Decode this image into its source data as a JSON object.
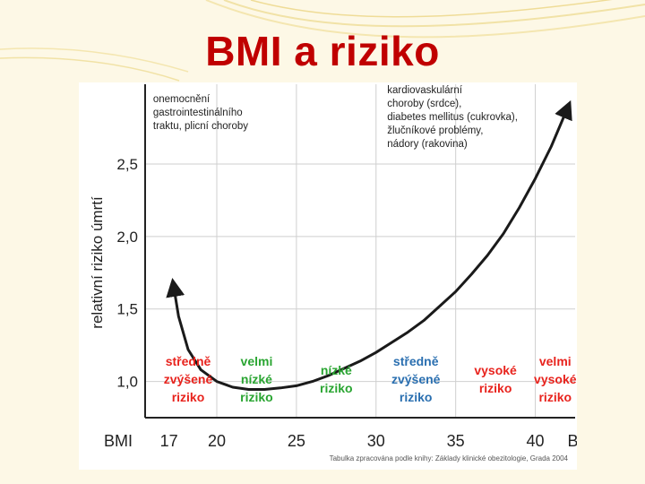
{
  "slide": {
    "title": "BMI a riziko"
  },
  "colors": {
    "title": "#c00000",
    "red_zone": "#e8231d",
    "green_zone": "#2aa532",
    "blue_zone": "#2a6fb0",
    "curve": "#1a1a1a",
    "grid": "#cfcfcf"
  },
  "chart_data": {
    "type": "line",
    "ylabel": "relativní riziko úmrtí",
    "xlabel": "BMI",
    "x_axis_start_label": "BMI",
    "x_axis_end_label": "BMI",
    "ylim": [
      0.75,
      3.05
    ],
    "xlim": [
      15.5,
      42.5
    ],
    "y_ticks": [
      {
        "value": 1.0,
        "label": "1,0"
      },
      {
        "value": 1.5,
        "label": "1,5"
      },
      {
        "value": 2.0,
        "label": "2,0"
      },
      {
        "value": 2.5,
        "label": "2,5"
      }
    ],
    "x_ticks": [
      {
        "value": 17,
        "label": "17"
      },
      {
        "value": 20,
        "label": "20"
      },
      {
        "value": 25,
        "label": "25"
      },
      {
        "value": 30,
        "label": "30"
      },
      {
        "value": 35,
        "label": "35"
      },
      {
        "value": 40,
        "label": "40"
      }
    ],
    "grid": true,
    "series": [
      {
        "x": [
          17.3,
          17.6,
          18.2,
          19.0,
          20.0,
          21.0,
          22.0,
          23.0,
          24.0,
          25.0,
          26.0,
          27.0,
          28.0,
          29.0,
          30.0,
          31.0,
          32.0,
          33.0,
          34.0,
          35.0,
          36.0,
          37.0,
          38.0,
          39.0,
          40.0,
          41.0,
          42.0
        ],
        "y": [
          1.65,
          1.45,
          1.22,
          1.08,
          1.0,
          0.96,
          0.945,
          0.945,
          0.955,
          0.97,
          1.0,
          1.04,
          1.09,
          1.14,
          1.2,
          1.27,
          1.34,
          1.42,
          1.52,
          1.62,
          1.74,
          1.87,
          2.02,
          2.2,
          2.4,
          2.62,
          2.88
        ]
      }
    ],
    "annotations": [
      {
        "id": "low",
        "lines": [
          "onemocnění",
          "gastrointestinálního",
          "traktu, plicní choroby"
        ]
      },
      {
        "id": "high",
        "lines": [
          "kardiovaskulární",
          "choroby (srdce),",
          "diabetes mellitus (cukrovka),",
          "žlučníkové problémy,",
          "nádory (rakovina)"
        ]
      }
    ],
    "zones": [
      {
        "x_from": 15.5,
        "x_to": 20,
        "color": "#e8231d",
        "lines": [
          "středně",
          "zvýšené",
          "riziko"
        ]
      },
      {
        "x_from": 20,
        "x_to": 25,
        "color": "#2aa532",
        "lines": [
          "velmi",
          "nízké",
          "riziko"
        ]
      },
      {
        "x_from": 25,
        "x_to": 30,
        "color": "#2aa532",
        "lines": [
          "nízké",
          "riziko"
        ]
      },
      {
        "x_from": 30,
        "x_to": 35,
        "color": "#2a6fb0",
        "lines": [
          "středně",
          "zvýšené",
          "riziko"
        ]
      },
      {
        "x_from": 35,
        "x_to": 40,
        "color": "#e8231d",
        "lines": [
          "vysoké",
          "riziko"
        ]
      },
      {
        "x_from": 40,
        "x_to": 42.5,
        "color": "#e8231d",
        "lines": [
          "velmi",
          "vysoké",
          "riziko"
        ]
      }
    ],
    "source": "Tabulka zpracována podle knihy: Základy klinické obezitologie, Grada 2004"
  }
}
